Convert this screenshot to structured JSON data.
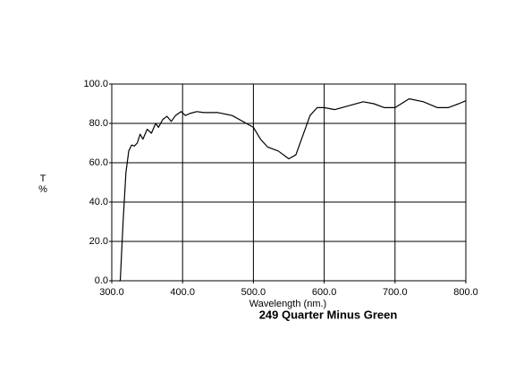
{
  "chart_data": {
    "type": "line",
    "title": "249 Quarter Minus Green",
    "xlabel": "Wavelength (nm.)",
    "ylabel": [
      "T",
      "%"
    ],
    "xlim": [
      300,
      800
    ],
    "ylim": [
      0,
      100
    ],
    "xticks": [
      {
        "value": 300,
        "label": "300.0"
      },
      {
        "value": 400,
        "label": "400.0"
      },
      {
        "value": 500,
        "label": "500.0"
      },
      {
        "value": 600,
        "label": "600.0"
      },
      {
        "value": 700,
        "label": "700.0"
      },
      {
        "value": 800,
        "label": "800.0"
      }
    ],
    "yticks": [
      {
        "value": 0,
        "label": "0.0"
      },
      {
        "value": 20,
        "label": "20.0"
      },
      {
        "value": 40,
        "label": "40.0"
      },
      {
        "value": 60,
        "label": "60.0"
      },
      {
        "value": 80,
        "label": "80.0"
      },
      {
        "value": 100,
        "label": "100.0"
      }
    ],
    "grid": true,
    "color": "#000000",
    "x": [
      310,
      312,
      316,
      320,
      324,
      328,
      332,
      336,
      340,
      344,
      350,
      356,
      362,
      366,
      372,
      378,
      384,
      390,
      398,
      404,
      410,
      420,
      430,
      450,
      470,
      490,
      500,
      510,
      520,
      535,
      550,
      560,
      570,
      580,
      590,
      600,
      615,
      635,
      655,
      670,
      685,
      700,
      720,
      740,
      760,
      775,
      790,
      800
    ],
    "values": [
      0,
      0,
      30,
      55,
      66,
      69,
      68.5,
      70,
      74.5,
      72,
      77,
      75,
      80,
      78,
      82,
      83.6,
      81,
      84,
      86,
      84,
      85,
      86,
      85.5,
      85.5,
      84,
      80,
      78,
      72,
      68,
      66,
      62,
      64,
      74,
      84,
      88,
      88,
      87,
      89,
      91,
      90,
      88,
      88,
      92.5,
      91,
      88,
      88,
      90,
      91.5
    ]
  }
}
